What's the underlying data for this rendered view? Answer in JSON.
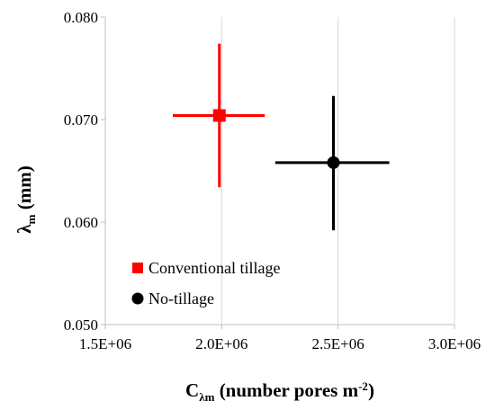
{
  "chart_data": {
    "type": "scatter",
    "title": "",
    "xlabel": {
      "main": "C",
      "sub": "λm",
      "rest": " (number pores m",
      "sup": "-2",
      "close": ")"
    },
    "ylabel": {
      "main": "λ",
      "sub": "m",
      "rest": " (mm)"
    },
    "xlim": [
      1500000,
      3000000
    ],
    "ylim": [
      0.05,
      0.08
    ],
    "x_ticks": [
      1500000,
      2000000,
      2500000,
      3000000
    ],
    "x_tick_labels": [
      "1.5E+06",
      "2.0E+06",
      "2.5E+06",
      "3.0E+06"
    ],
    "y_ticks": [
      0.05,
      0.06,
      0.07,
      0.08
    ],
    "y_tick_labels": [
      "0.050",
      "0.060",
      "0.070",
      "0.080"
    ],
    "grid": {
      "vertical": true,
      "horizontal": false
    },
    "legend_position": "bottom-left",
    "series": [
      {
        "name": "Conventional tillage",
        "marker": "square",
        "color": "#ff0000",
        "x": 1990000,
        "y": 0.0704,
        "x_err": [
          1790000,
          2185000
        ],
        "y_err": [
          0.0634,
          0.0774
        ]
      },
      {
        "name": "No-tillage",
        "marker": "circle",
        "color": "#000000",
        "x": 2480000,
        "y": 0.0658,
        "x_err": [
          2230000,
          2720000
        ],
        "y_err": [
          0.0592,
          0.0723
        ]
      }
    ]
  }
}
